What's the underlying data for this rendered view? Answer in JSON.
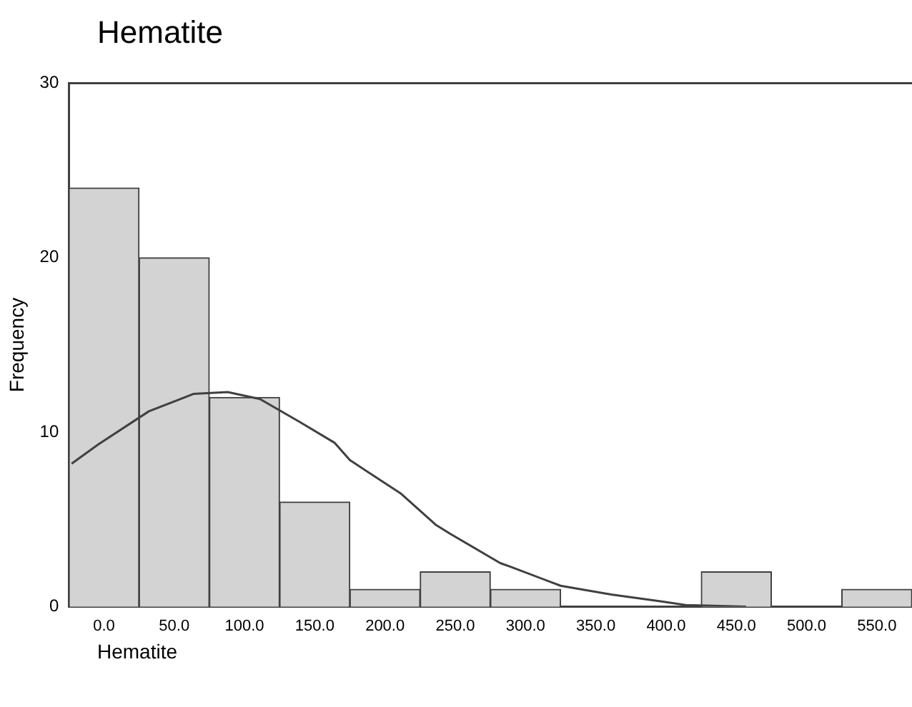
{
  "chart_data": {
    "type": "histogram",
    "title": "Hematite",
    "xlabel": "Hematite",
    "ylabel": "Frequency",
    "bins": [
      -25,
      25,
      75,
      125,
      175,
      225,
      275,
      325,
      375,
      425,
      475,
      525,
      575
    ],
    "values": [
      24,
      20,
      12,
      6,
      1,
      2,
      1,
      0,
      0,
      2,
      0,
      1
    ],
    "color": "#d3d3d3",
    "series": [
      {
        "type": "line",
        "color": "#404040",
        "x": [
          -23,
          -4,
          32,
          64,
          88,
          111,
          139,
          164,
          175,
          211,
          236,
          246,
          282,
          289,
          325,
          361,
          397,
          414,
          457
        ],
        "values": [
          8.2,
          9.3,
          11.2,
          12.2,
          12.3,
          11.9,
          10.6,
          9.4,
          8.4,
          6.5,
          4.7,
          4.2,
          2.5,
          2.3,
          1.2,
          0.7,
          0.3,
          0.1,
          0
        ]
      }
    ],
    "xlim": [
      -25,
      575
    ],
    "xticks": [
      {
        "value": 0,
        "label": "0.0"
      },
      {
        "value": 50,
        "label": "50.0"
      },
      {
        "value": 100,
        "label": "100.0"
      },
      {
        "value": 150,
        "label": "150.0"
      },
      {
        "value": 200,
        "label": "200.0"
      },
      {
        "value": 250,
        "label": "250.0"
      },
      {
        "value": 300,
        "label": "300.0"
      },
      {
        "value": 350,
        "label": "350.0"
      },
      {
        "value": 400,
        "label": "400.0"
      },
      {
        "value": 450,
        "label": "450.0"
      },
      {
        "value": 500,
        "label": "500.0"
      },
      {
        "value": 550,
        "label": "550.0"
      }
    ],
    "ylim": [
      0,
      30
    ],
    "yticks": [
      0,
      10,
      20,
      30
    ],
    "grid": false,
    "legend": false,
    "marker": "none",
    "line_style": "solid"
  }
}
